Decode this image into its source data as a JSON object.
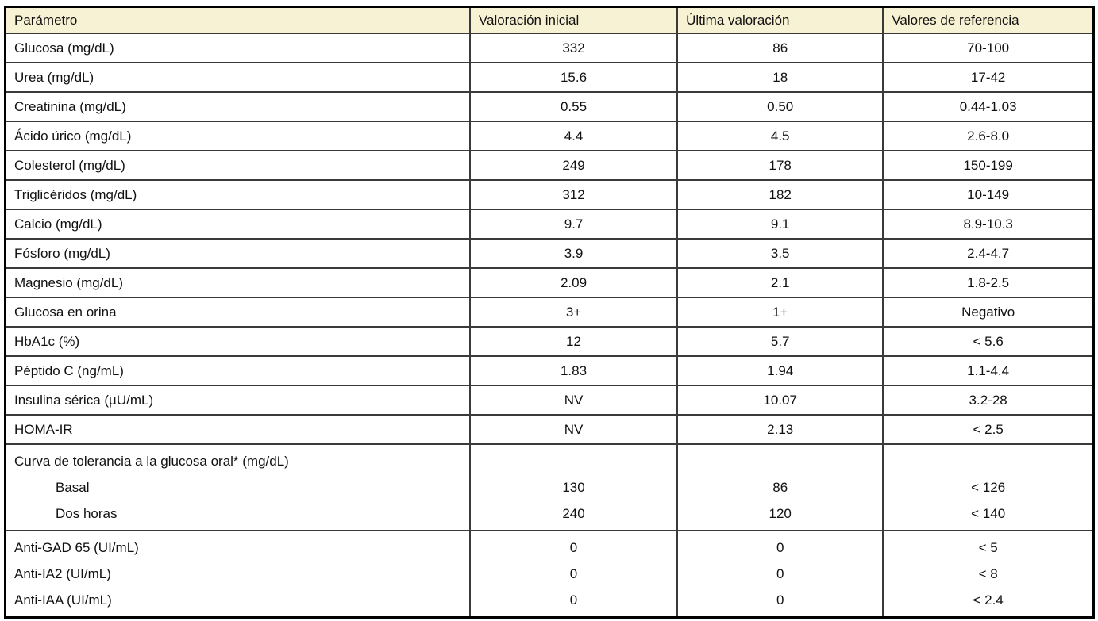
{
  "colors": {
    "header_bg": "#f7f2d3",
    "grid_line": "#3a3a3a",
    "outer_border": "#000000",
    "text": "#111111"
  },
  "chart_data": {
    "type": "table",
    "title": "",
    "columns": [
      "Parámetro",
      "Valoración inicial",
      "Última valoración",
      "Valores de referencia"
    ],
    "rows": [
      [
        "Glucosa (mg/dL)",
        "332",
        "86",
        "70-100"
      ],
      [
        "Urea (mg/dL)",
        "15.6",
        "18",
        "17-42"
      ],
      [
        "Creatinina (mg/dL)",
        "0.55",
        "0.50",
        "0.44-1.03"
      ],
      [
        "Ácido úrico (mg/dL)",
        "4.4",
        "4.5",
        "2.6-8.0"
      ],
      [
        "Colesterol (mg/dL)",
        "249",
        "178",
        "150-199"
      ],
      [
        "Triglicéridos (mg/dL)",
        "312",
        "182",
        "10-149"
      ],
      [
        "Calcio (mg/dL)",
        "9.7",
        "9.1",
        "8.9-10.3"
      ],
      [
        "Fósforo (mg/dL)",
        "3.9",
        "3.5",
        "2.4-4.7"
      ],
      [
        "Magnesio (mg/dL)",
        "2.09",
        "2.1",
        "1.8-2.5"
      ],
      [
        "Glucosa en orina",
        "3+",
        "1+",
        "Negativo"
      ],
      [
        "HbA1c (%)",
        "12",
        "5.7",
        "< 5.6"
      ],
      [
        "Péptido C (ng/mL)",
        "1.83",
        "1.94",
        "1.1-4.4"
      ],
      [
        "Insulina sérica (µU/mL)",
        "NV",
        "10.07",
        "3.2-28"
      ],
      [
        "HOMA-IR",
        "NV",
        "2.13",
        "< 2.5"
      ]
    ],
    "groups": [
      {
        "title": "Curva de tolerancia a la glucosa oral* (mg/dL)",
        "rows": [
          [
            "Basal",
            "130",
            "86",
            "< 126"
          ],
          [
            "Dos horas",
            "240",
            "120",
            "< 140"
          ]
        ]
      },
      {
        "rows": [
          [
            "Anti-GAD 65 (UI/mL)",
            "0",
            "0",
            "< 5"
          ],
          [
            "Anti-IA2 (UI/mL)",
            "0",
            "0",
            "< 8"
          ],
          [
            "Anti-IAA (UI/mL)",
            "0",
            "0",
            "< 2.4"
          ]
        ]
      }
    ]
  }
}
